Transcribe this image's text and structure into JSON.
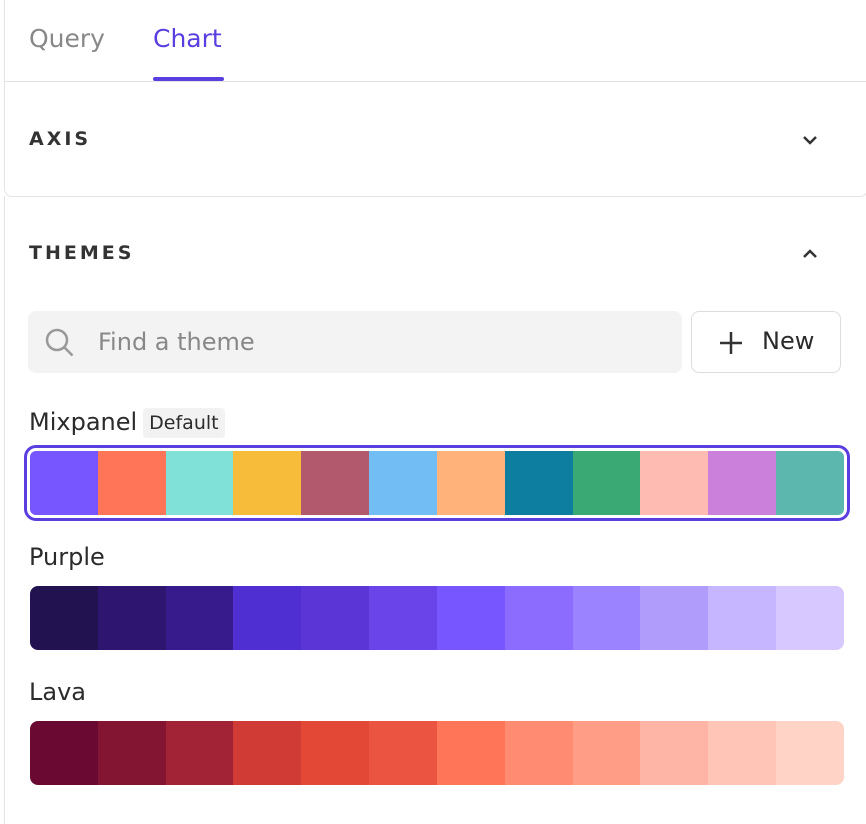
{
  "tabs": [
    {
      "label": "Query",
      "active": false
    },
    {
      "label": "Chart",
      "active": true
    }
  ],
  "sections": [
    {
      "title": "AXIS",
      "expanded": false
    },
    {
      "title": "THEMES",
      "expanded": true
    }
  ],
  "search": {
    "placeholder": "Find a theme"
  },
  "new_button": {
    "label": "New"
  },
  "themes": [
    {
      "name": "Mixpanel",
      "badge": "Default",
      "selected": true,
      "colors": [
        "#7856ff",
        "#ff7557",
        "#80e1d9",
        "#f8bc3b",
        "#b2596e",
        "#72bef4",
        "#ffb27a",
        "#0d7ea0",
        "#3ba974",
        "#febbb2",
        "#cb80dc",
        "#5cb7af"
      ]
    },
    {
      "name": "Purple",
      "selected": false,
      "colors": [
        "#22124f",
        "#2e1570",
        "#371a8c",
        "#4f2ed2",
        "#5b35d5",
        "#6a44e8",
        "#7856ff",
        "#8b6cff",
        "#9b82ff",
        "#b09dfb",
        "#c6b5ff",
        "#d7c8ff"
      ]
    },
    {
      "name": "Lava",
      "selected": false,
      "colors": [
        "#6a0a33",
        "#841532",
        "#a12335",
        "#d03b35",
        "#e34836",
        "#ea5440",
        "#ff7557",
        "#ff8b72",
        "#ff9d86",
        "#ffb5a6",
        "#ffc6b8",
        "#ffd3c6"
      ]
    }
  ]
}
